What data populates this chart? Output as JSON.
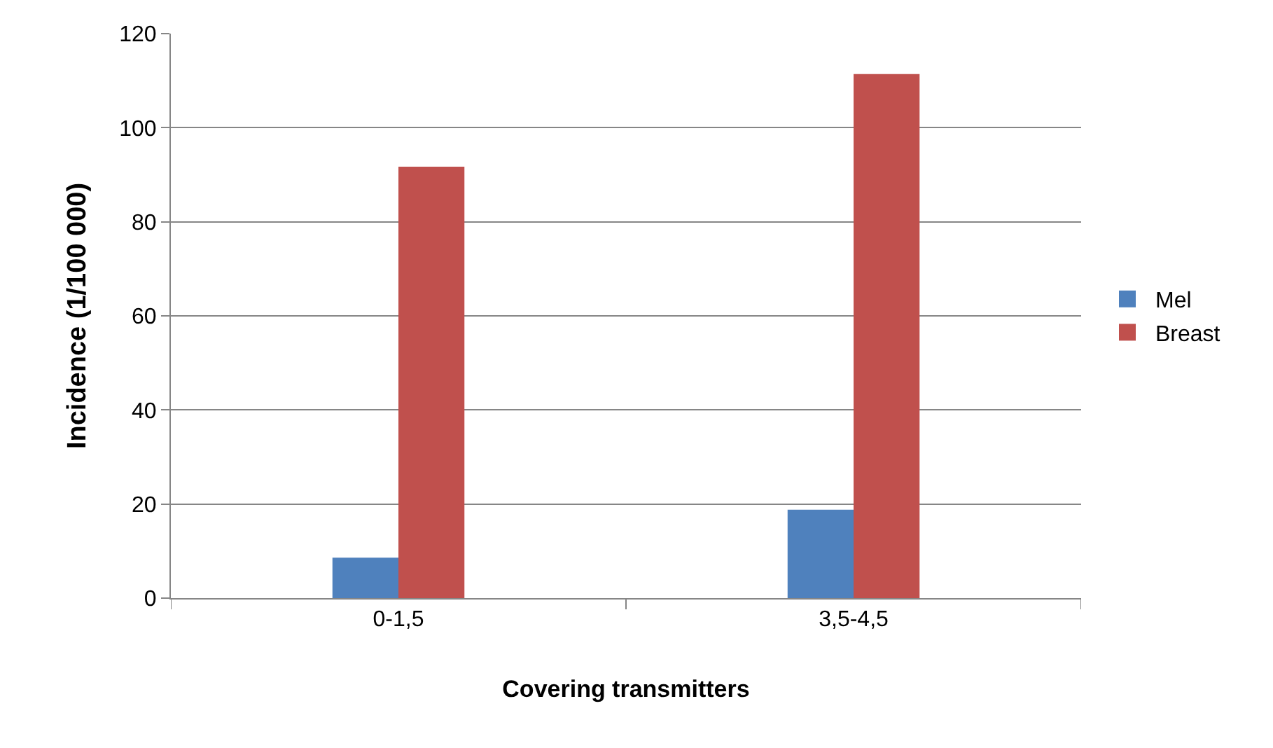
{
  "chart_data": {
    "type": "bar",
    "xlabel": "Covering transmitters",
    "ylabel": "Incidence (1/100 000)",
    "categories": [
      "0-1,5",
      "3,5-4,5"
    ],
    "series": [
      {
        "name": "Mel",
        "color": "#4f81bd",
        "values": [
          8.6,
          18.8
        ]
      },
      {
        "name": "Breast",
        "color": "#c0504d",
        "values": [
          91.7,
          111.4
        ]
      }
    ],
    "ylim": [
      0,
      120
    ],
    "yticks": [
      0,
      20,
      40,
      60,
      80,
      100,
      120
    ],
    "grid": "y",
    "legend": "right"
  }
}
